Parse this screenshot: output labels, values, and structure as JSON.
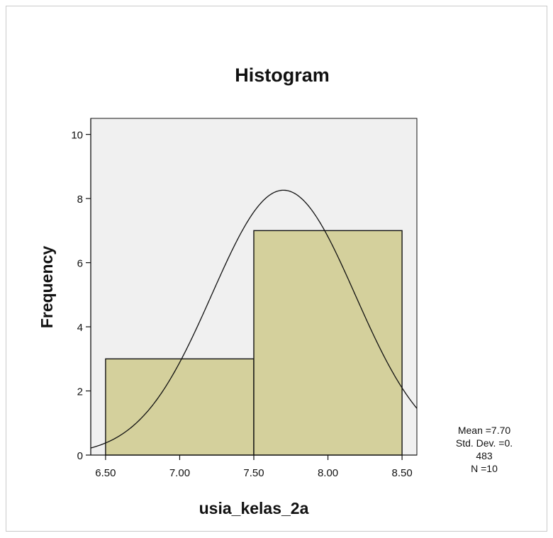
{
  "chart_data": {
    "type": "bar",
    "title": "Histogram",
    "xlabel": "usia_kelas_2a",
    "ylabel": "Frequency",
    "bins": [
      {
        "start": 6.5,
        "end": 7.5,
        "count": 3
      },
      {
        "start": 7.5,
        "end": 8.5,
        "count": 7
      }
    ],
    "xlim": [
      6.4,
      8.6
    ],
    "ylim": [
      0,
      10.5
    ],
    "x_ticks": [
      {
        "value": 6.5,
        "label": "6.50"
      },
      {
        "value": 7.0,
        "label": "7.00"
      },
      {
        "value": 7.5,
        "label": "7.50"
      },
      {
        "value": 8.0,
        "label": "8.00"
      },
      {
        "value": 8.5,
        "label": "8.50"
      }
    ],
    "y_ticks": [
      {
        "value": 0,
        "label": "0"
      },
      {
        "value": 2,
        "label": "2"
      },
      {
        "value": 4,
        "label": "4"
      },
      {
        "value": 6,
        "label": "6"
      },
      {
        "value": 8,
        "label": "8"
      },
      {
        "value": 10,
        "label": "10"
      }
    ],
    "normal_curve": {
      "mean": 7.7,
      "std_dev": 0.483,
      "n": 10,
      "bin_width": 1.0
    },
    "stats_text": [
      "Mean =7.70",
      "Std. Dev. =0.",
      "483",
      "N =10"
    ],
    "grid": false,
    "colors": {
      "plot_background": "#f0f0f0",
      "bar_fill": "#d4d09c",
      "bar_stroke": "#111111",
      "curve": "#111111"
    }
  }
}
